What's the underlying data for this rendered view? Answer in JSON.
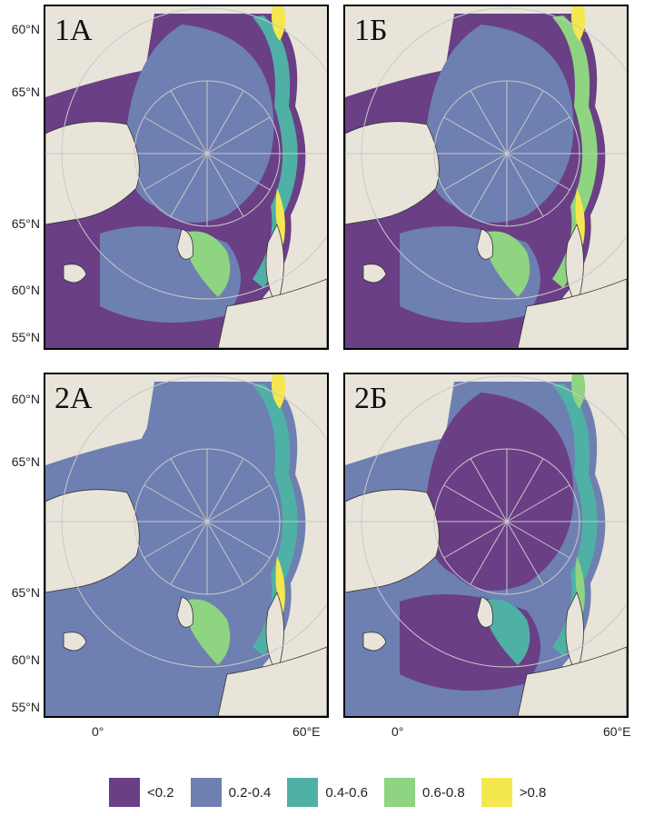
{
  "colors": {
    "land": "#e8e4d9",
    "c1": "#6a3f85",
    "c2": "#6e7fb1",
    "c3": "#4fb0a6",
    "c4": "#8ed481",
    "c5": "#f4e84e"
  },
  "panels": [
    {
      "tag": "1А"
    },
    {
      "tag": "1Б"
    },
    {
      "tag": "2А"
    },
    {
      "tag": "2Б"
    }
  ],
  "lat_labels": [
    "60°N",
    "65°N",
    "65°N",
    "60°N",
    "55°N"
  ],
  "lon_labels": [
    "0°",
    "60°E"
  ],
  "legend": [
    {
      "label": "<0.2",
      "color": "#6a3f85"
    },
    {
      "label": "0.2-0.4",
      "color": "#6e7fb1"
    },
    {
      "label": "0.4-0.6",
      "color": "#4fb0a6"
    },
    {
      "label": "0.6-0.8",
      "color": "#8ed481"
    },
    {
      "label": ">0.8",
      "color": "#f4e84e"
    }
  ]
}
